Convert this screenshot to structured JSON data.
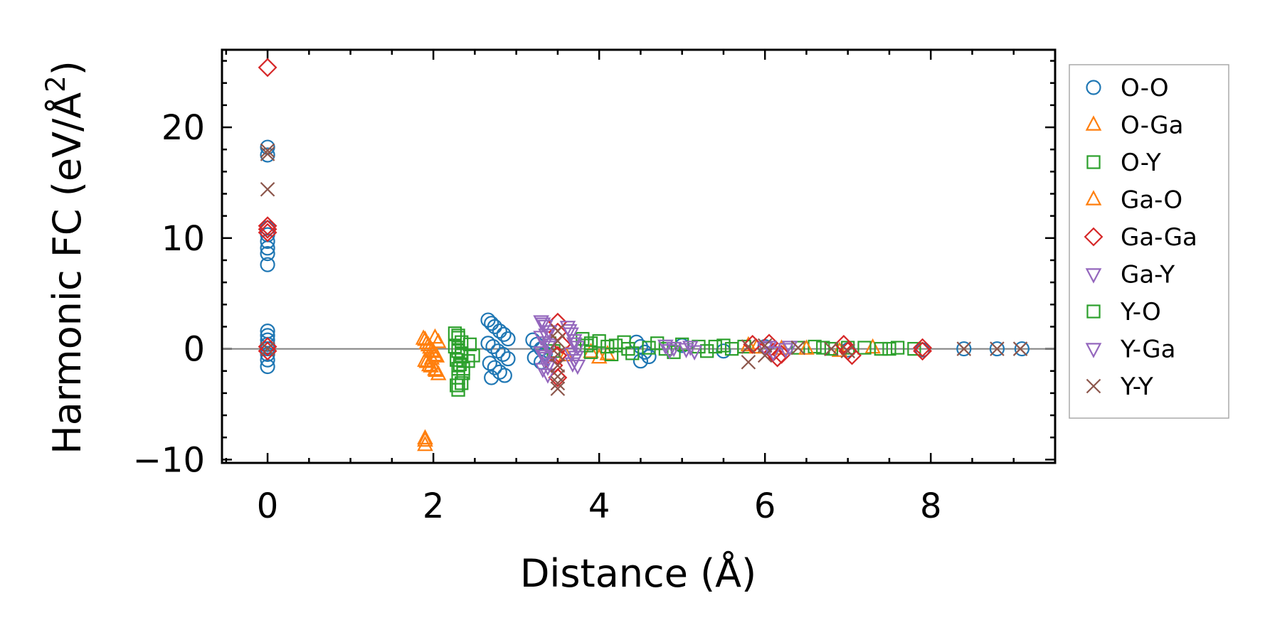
{
  "chart_data": {
    "type": "scatter",
    "xlabel": "Distance (Å)",
    "ylabel": "Harmonic FC (eV/Å",
    "ylabel_sup": "2",
    "ylabel_close": ")",
    "xlim": [
      -0.55,
      9.5
    ],
    "ylim": [
      -10.3,
      27.0
    ],
    "xticks": [
      0,
      2,
      4,
      6,
      8
    ],
    "yticks": [
      -10,
      0,
      10,
      20
    ],
    "xtick_labels": [
      "0",
      "2",
      "4",
      "6",
      "8"
    ],
    "ytick_labels": [
      "−10",
      "0",
      "10",
      "20"
    ],
    "x_minor_step": 0.5,
    "y_minor_step": 2,
    "zero_line": 0,
    "legend_position": "outside-right",
    "series": [
      {
        "name": "O-O",
        "marker": "circle",
        "color": "#1f77b4",
        "points": [
          [
            0,
            18.2
          ],
          [
            0,
            17.5
          ],
          [
            0,
            10.9
          ],
          [
            0,
            10.3
          ],
          [
            0,
            9.7
          ],
          [
            0,
            9.1
          ],
          [
            0,
            8.6
          ],
          [
            0,
            7.6
          ],
          [
            0,
            1.6
          ],
          [
            0,
            1.2
          ],
          [
            0,
            0.8
          ],
          [
            0,
            0.4
          ],
          [
            0,
            0
          ],
          [
            0,
            -0.5
          ],
          [
            0,
            -1
          ],
          [
            0,
            -1.6
          ],
          [
            2.66,
            2.6
          ],
          [
            2.7,
            2.3
          ],
          [
            2.74,
            2.0
          ],
          [
            2.8,
            1.6
          ],
          [
            2.85,
            1.3
          ],
          [
            2.9,
            0.9
          ],
          [
            2.66,
            0.5
          ],
          [
            2.72,
            0.2
          ],
          [
            2.78,
            -0.2
          ],
          [
            2.84,
            -0.5
          ],
          [
            2.9,
            -0.9
          ],
          [
            2.68,
            -1.3
          ],
          [
            2.74,
            -1.7
          ],
          [
            2.8,
            -2.1
          ],
          [
            2.86,
            -2.4
          ],
          [
            2.7,
            -2.6
          ],
          [
            3.2,
            0.8
          ],
          [
            3.25,
            0.4
          ],
          [
            3.3,
            0
          ],
          [
            3.35,
            -0.4
          ],
          [
            3.22,
            -0.8
          ],
          [
            3.3,
            -1.2
          ],
          [
            4.45,
            0.6
          ],
          [
            4.5,
            0.2
          ],
          [
            4.55,
            -0.3
          ],
          [
            4.5,
            -1.1
          ],
          [
            4.6,
            -0.7
          ],
          [
            5.0,
            0.3
          ],
          [
            5.5,
            -0.2
          ],
          [
            6.0,
            0.2
          ],
          [
            7.0,
            -0.1
          ],
          [
            7.9,
            -0.1
          ],
          [
            8.4,
            0
          ],
          [
            8.8,
            0
          ],
          [
            9.1,
            0
          ]
        ]
      },
      {
        "name": "O-Ga",
        "marker": "triangle-up",
        "color": "#ff7f0e",
        "points": [
          [
            1.88,
            0.9
          ],
          [
            1.92,
            0.5
          ],
          [
            1.96,
            0.1
          ],
          [
            2.0,
            -0.3
          ],
          [
            2.04,
            -0.7
          ],
          [
            1.9,
            -1.1
          ],
          [
            1.95,
            -1.5
          ],
          [
            2.02,
            -1.9
          ],
          [
            2.06,
            -2.3
          ],
          [
            1.9,
            -8.1
          ],
          [
            1.9,
            -8.7
          ],
          [
            2.02,
            1.0
          ],
          [
            2.06,
            0.6
          ],
          [
            1.98,
            -0.9
          ],
          [
            3.6,
            -0.6
          ],
          [
            3.9,
            -0.3
          ],
          [
            4.0,
            -0.8
          ],
          [
            4.1,
            -0.5
          ],
          [
            5.8,
            0.3
          ],
          [
            6.2,
            0
          ],
          [
            6.9,
            -0.2
          ],
          [
            7.3,
            0.1
          ]
        ]
      },
      {
        "name": "O-Y",
        "marker": "square",
        "color": "#2ca02c",
        "points": [
          [
            2.26,
            1.4
          ],
          [
            2.3,
            1.0
          ],
          [
            2.34,
            0.6
          ],
          [
            2.26,
            0.2
          ],
          [
            2.3,
            -0.2
          ],
          [
            2.34,
            -0.6
          ],
          [
            2.28,
            -1.0
          ],
          [
            2.32,
            -1.4
          ],
          [
            2.36,
            -1.8
          ],
          [
            2.3,
            -2.6
          ],
          [
            2.34,
            -3.1
          ],
          [
            2.3,
            -3.7
          ],
          [
            2.36,
            -2.2
          ],
          [
            2.42,
            -1.1
          ],
          [
            2.48,
            -0.6
          ],
          [
            2.44,
            0.4
          ],
          [
            3.4,
            0.5
          ],
          [
            3.45,
            -0.2
          ],
          [
            3.8,
            0.9
          ],
          [
            3.85,
            0.3
          ],
          [
            3.9,
            -0.3
          ],
          [
            4.0,
            0.7
          ],
          [
            4.1,
            0.2
          ],
          [
            4.15,
            -0.5
          ],
          [
            4.3,
            0.6
          ],
          [
            4.35,
            0
          ],
          [
            4.4,
            -0.4
          ],
          [
            4.7,
            0.5
          ],
          [
            4.8,
            0
          ],
          [
            4.9,
            -0.3
          ],
          [
            5.0,
            0.4
          ],
          [
            5.2,
            0.2
          ],
          [
            5.3,
            -0.2
          ],
          [
            5.5,
            0.3
          ],
          [
            5.6,
            0
          ],
          [
            5.75,
            0.2
          ],
          [
            6.4,
            0.1
          ],
          [
            6.6,
            0.2
          ],
          [
            6.8,
            0
          ],
          [
            7.0,
            0.1
          ],
          [
            7.2,
            0.1
          ],
          [
            7.4,
            0
          ],
          [
            7.6,
            0.1
          ],
          [
            7.8,
            0
          ]
        ]
      },
      {
        "name": "Ga-O",
        "marker": "triangle-up",
        "color": "#ff7f0e",
        "points": [
          [
            1.9,
            0.8
          ],
          [
            1.94,
            0.3
          ],
          [
            1.98,
            -0.2
          ],
          [
            2.02,
            -0.6
          ],
          [
            1.92,
            -1.2
          ],
          [
            1.97,
            -1.6
          ],
          [
            2.03,
            -2.0
          ],
          [
            1.9,
            -8.3
          ],
          [
            5.9,
            0.1
          ],
          [
            6.5,
            0
          ]
        ]
      },
      {
        "name": "Ga-Ga",
        "marker": "diamond",
        "color": "#d62728",
        "points": [
          [
            0,
            25.4
          ],
          [
            0,
            11.1
          ],
          [
            0,
            10.8
          ],
          [
            0,
            10.5
          ],
          [
            0,
            0.2
          ],
          [
            0,
            -0.2
          ],
          [
            3.5,
            2.4
          ],
          [
            3.5,
            1.5
          ],
          [
            3.55,
            0.4
          ],
          [
            3.5,
            -0.6
          ],
          [
            3.45,
            -1.5
          ],
          [
            3.5,
            -2.6
          ],
          [
            5.85,
            0.4
          ],
          [
            6.05,
            0.5
          ],
          [
            6.1,
            -0.3
          ],
          [
            6.15,
            -0.8
          ],
          [
            6.2,
            -0.5
          ],
          [
            6.95,
            0.4
          ],
          [
            7.0,
            -0.2
          ],
          [
            7.05,
            -0.6
          ],
          [
            7.9,
            0.1
          ],
          [
            7.9,
            -0.2
          ]
        ]
      },
      {
        "name": "Ga-Y",
        "marker": "triangle-down",
        "color": "#9467bd",
        "points": [
          [
            3.3,
            2.5
          ],
          [
            3.35,
            2.1
          ],
          [
            3.4,
            1.6
          ],
          [
            3.3,
            1.1
          ],
          [
            3.35,
            0.6
          ],
          [
            3.4,
            0.2
          ],
          [
            3.3,
            -0.3
          ],
          [
            3.35,
            -0.8
          ],
          [
            3.4,
            -1.3
          ],
          [
            3.32,
            -1.8
          ],
          [
            3.38,
            -2.3
          ],
          [
            3.62,
            2.0
          ],
          [
            3.66,
            1.4
          ],
          [
            3.7,
            0.8
          ],
          [
            3.74,
            0.2
          ],
          [
            3.66,
            -0.4
          ],
          [
            3.7,
            -1.0
          ],
          [
            3.74,
            -1.5
          ],
          [
            4.8,
            0.3
          ],
          [
            4.85,
            -0.1
          ],
          [
            5.1,
            0.2
          ],
          [
            5.15,
            -0.2
          ],
          [
            6.05,
            0.2
          ],
          [
            6.1,
            -0.3
          ],
          [
            6.25,
            0
          ],
          [
            6.3,
            0.2
          ]
        ]
      },
      {
        "name": "Y-O",
        "marker": "square",
        "color": "#2ca02c",
        "points": [
          [
            2.3,
            1.2
          ],
          [
            2.34,
            -0.4
          ],
          [
            2.3,
            -1.8
          ],
          [
            2.28,
            -3.3
          ],
          [
            3.9,
            0.5
          ],
          [
            4.2,
            0.3
          ],
          [
            4.6,
            0.1
          ],
          [
            5.4,
            0.2
          ],
          [
            6.7,
            0.1
          ],
          [
            7.5,
            0
          ]
        ]
      },
      {
        "name": "Y-Ga",
        "marker": "triangle-down",
        "color": "#9467bd",
        "points": [
          [
            3.32,
            2.3
          ],
          [
            3.36,
            1.3
          ],
          [
            3.4,
            0.4
          ],
          [
            3.34,
            -0.6
          ],
          [
            3.38,
            -1.6
          ],
          [
            3.64,
            1.7
          ],
          [
            3.7,
            0.5
          ],
          [
            3.72,
            -0.7
          ],
          [
            3.68,
            -1.3
          ],
          [
            4.9,
            0.1
          ],
          [
            5.05,
            0
          ],
          [
            6.0,
            0.1
          ]
        ]
      },
      {
        "name": "Y-Y",
        "marker": "x",
        "color": "#8c564b",
        "points": [
          [
            0,
            17.9
          ],
          [
            0,
            17.6
          ],
          [
            0,
            14.4
          ],
          [
            0,
            0
          ],
          [
            3.5,
            1.6
          ],
          [
            3.5,
            0.7
          ],
          [
            3.5,
            -0.5
          ],
          [
            3.5,
            -1.5
          ],
          [
            3.5,
            -2.5
          ],
          [
            3.5,
            -3.1
          ],
          [
            3.5,
            -3.6
          ],
          [
            5.8,
            0.2
          ],
          [
            5.8,
            -1.2
          ],
          [
            6.0,
            0.3
          ],
          [
            6.0,
            -0.6
          ],
          [
            6.4,
            0.1
          ],
          [
            6.8,
            0
          ],
          [
            7.0,
            -0.2
          ],
          [
            8.4,
            0
          ],
          [
            8.8,
            0
          ],
          [
            9.08,
            0
          ]
        ]
      }
    ]
  }
}
